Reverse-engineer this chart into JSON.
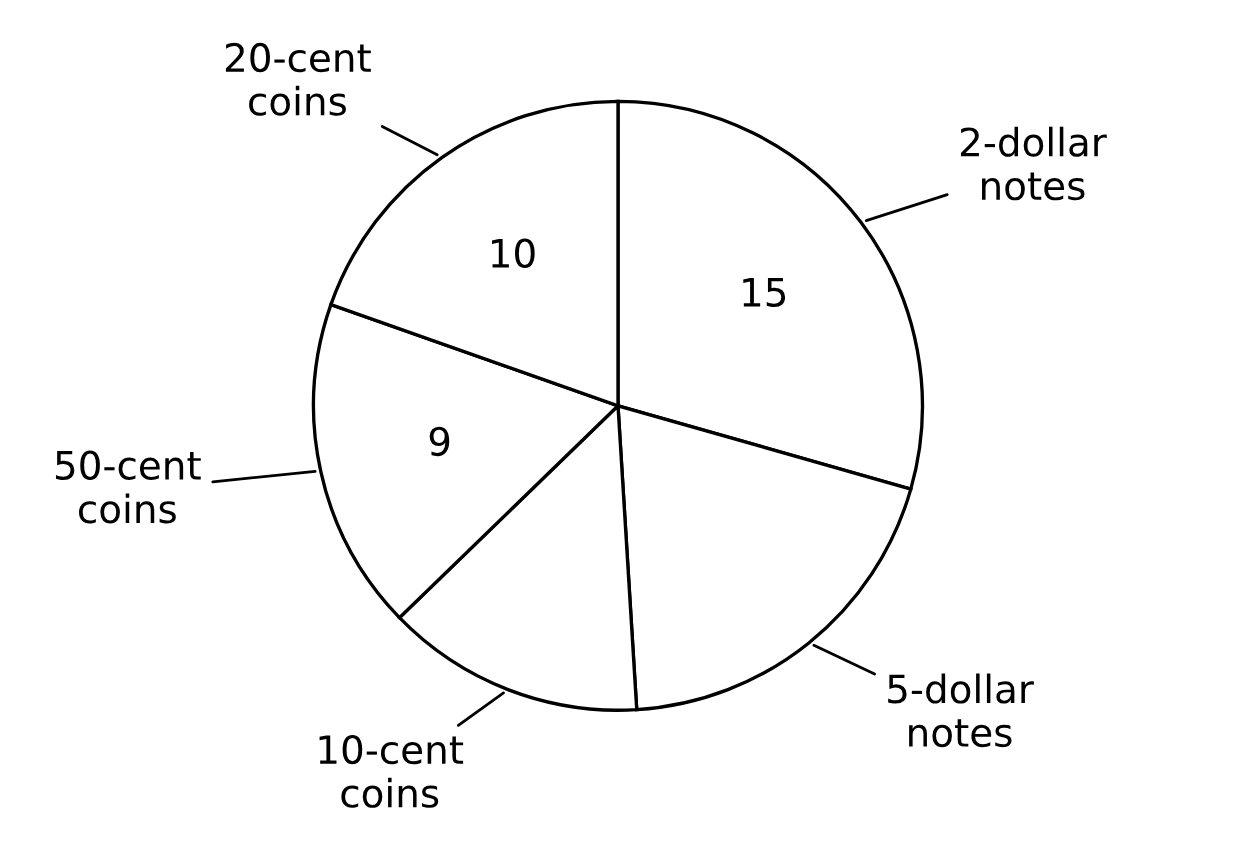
{
  "chart_data": {
    "type": "pie",
    "categories": [
      "2-dollar\nnotes",
      "5-dollar\nnotes",
      "10-cent\ncoins",
      "50-cent\ncoins",
      "20-cent\ncoins"
    ],
    "values": [
      15,
      10,
      7,
      9,
      10
    ],
    "colors": [
      "#ffffff",
      "#ffffff",
      "#ffffff",
      "#ffffff",
      "#ffffff"
    ],
    "value_labels": [
      "15",
      null,
      null,
      "9",
      "10"
    ]
  }
}
